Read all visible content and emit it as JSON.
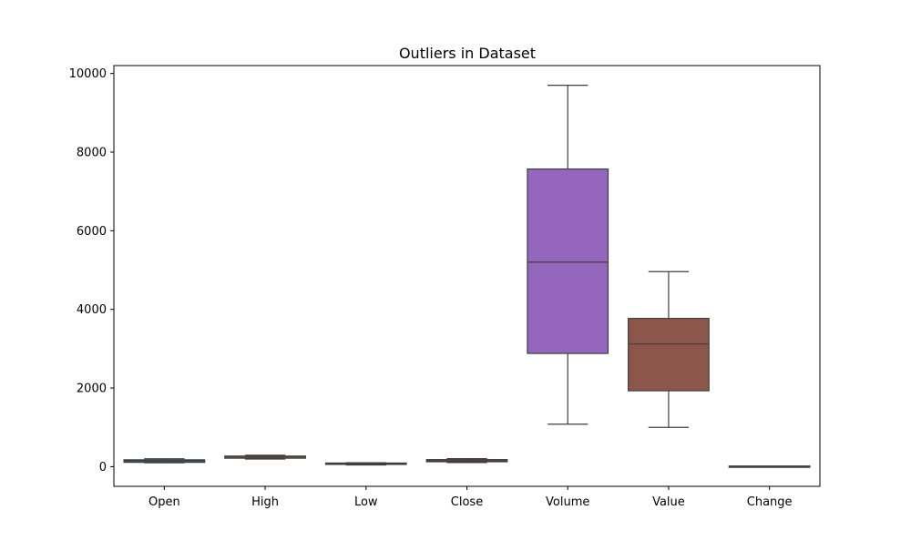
{
  "chart_data": {
    "type": "box",
    "title": "Outliers in Dataset",
    "xlabel": "",
    "ylabel": "",
    "ylim": [
      -500,
      10200
    ],
    "yticks": [
      0,
      2000,
      4000,
      6000,
      8000,
      10000
    ],
    "grid": false,
    "categories": [
      "Open",
      "High",
      "Low",
      "Close",
      "Volume",
      "Value",
      "Change"
    ],
    "boxes": [
      {
        "name": "Open",
        "whisker_low": 100,
        "q1": 110,
        "median": 145,
        "q3": 175,
        "whisker_high": 200,
        "color": "#1f77b4"
      },
      {
        "name": "High",
        "whisker_low": 195,
        "q1": 215,
        "median": 245,
        "q3": 270,
        "whisker_high": 290,
        "color": "#ff7f0e"
      },
      {
        "name": "Low",
        "whisker_low": 45,
        "q1": 60,
        "median": 75,
        "q3": 90,
        "whisker_high": 100,
        "color": "#2ca02c"
      },
      {
        "name": "Close",
        "whisker_low": 105,
        "q1": 125,
        "median": 150,
        "q3": 180,
        "whisker_high": 205,
        "color": "#d62728"
      },
      {
        "name": "Volume",
        "whisker_low": 1080,
        "q1": 2880,
        "median": 5200,
        "q3": 7570,
        "whisker_high": 9700,
        "color": "#9467bd"
      },
      {
        "name": "Value",
        "whisker_low": 1000,
        "q1": 1930,
        "median": 3120,
        "q3": 3770,
        "whisker_high": 4960,
        "color": "#8c564b"
      },
      {
        "name": "Change",
        "whisker_low": -3,
        "q1": -1,
        "median": 0,
        "q3": 1,
        "whisker_high": 3,
        "color": "#e377c2"
      }
    ]
  }
}
